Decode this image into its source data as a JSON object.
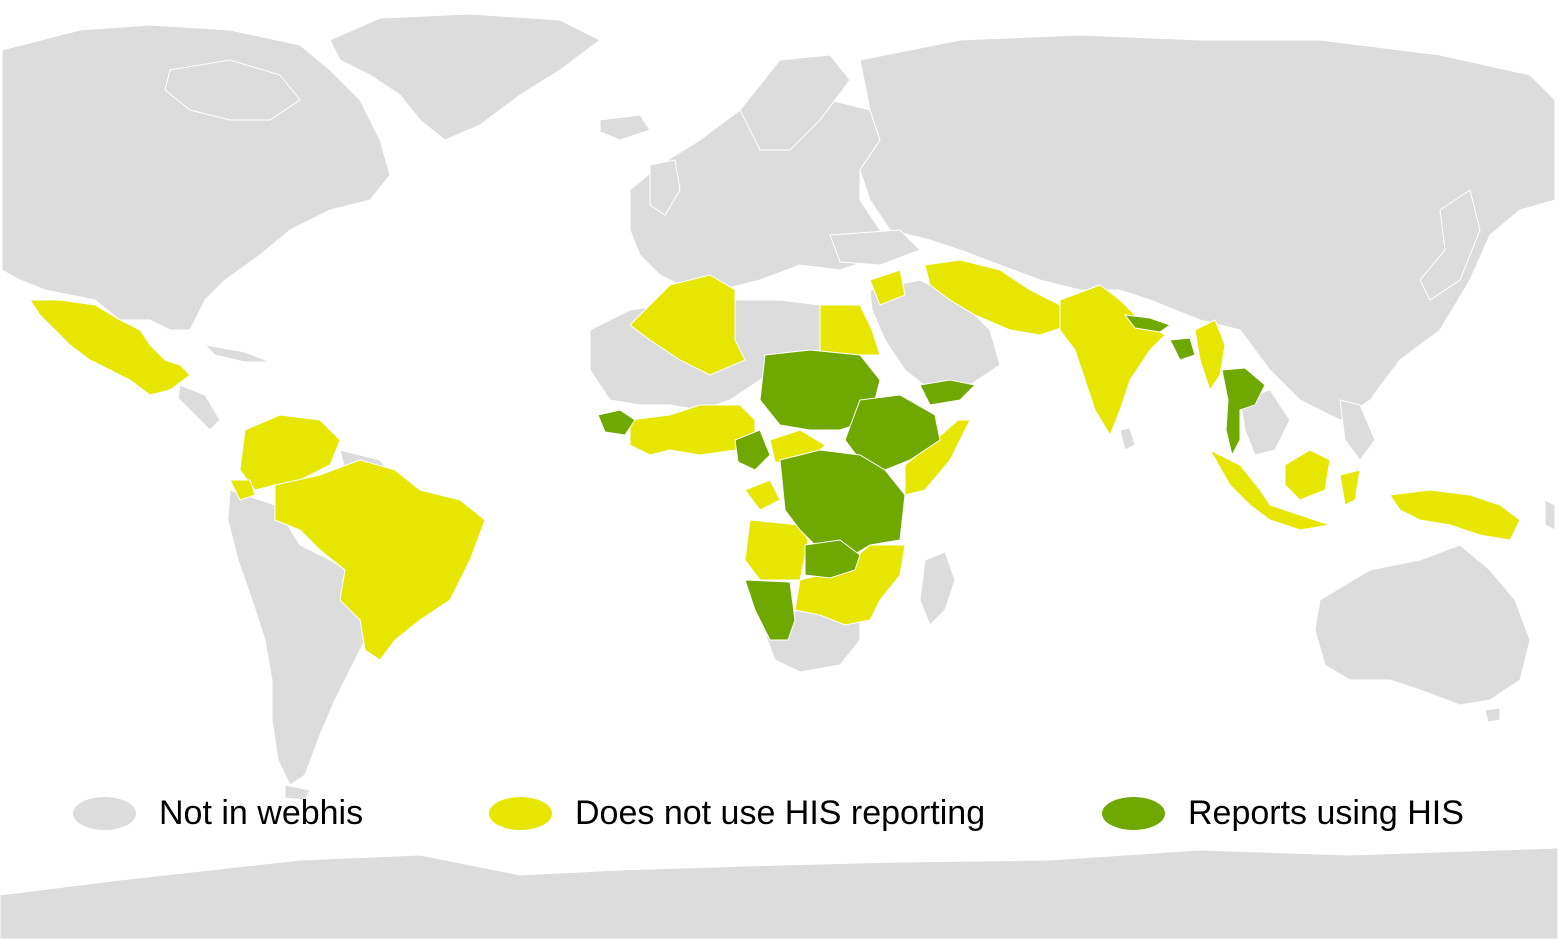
{
  "colors": {
    "background": "#ffffff",
    "not_in_webhis": "#dcdcdc",
    "does_not_use_his": "#e6e600",
    "reports_using_his": "#6fa800",
    "border": "#ffffff"
  },
  "legend": {
    "items": [
      {
        "label": "Not in webhis",
        "color": "#dcdcdc",
        "category": "not_in_webhis"
      },
      {
        "label": "Does not use HIS reporting",
        "color": "#e6e600",
        "category": "does_not_use_his"
      },
      {
        "label": "Reports using HIS",
        "color": "#6fa800",
        "category": "reports_using_his"
      }
    ]
  }
}
